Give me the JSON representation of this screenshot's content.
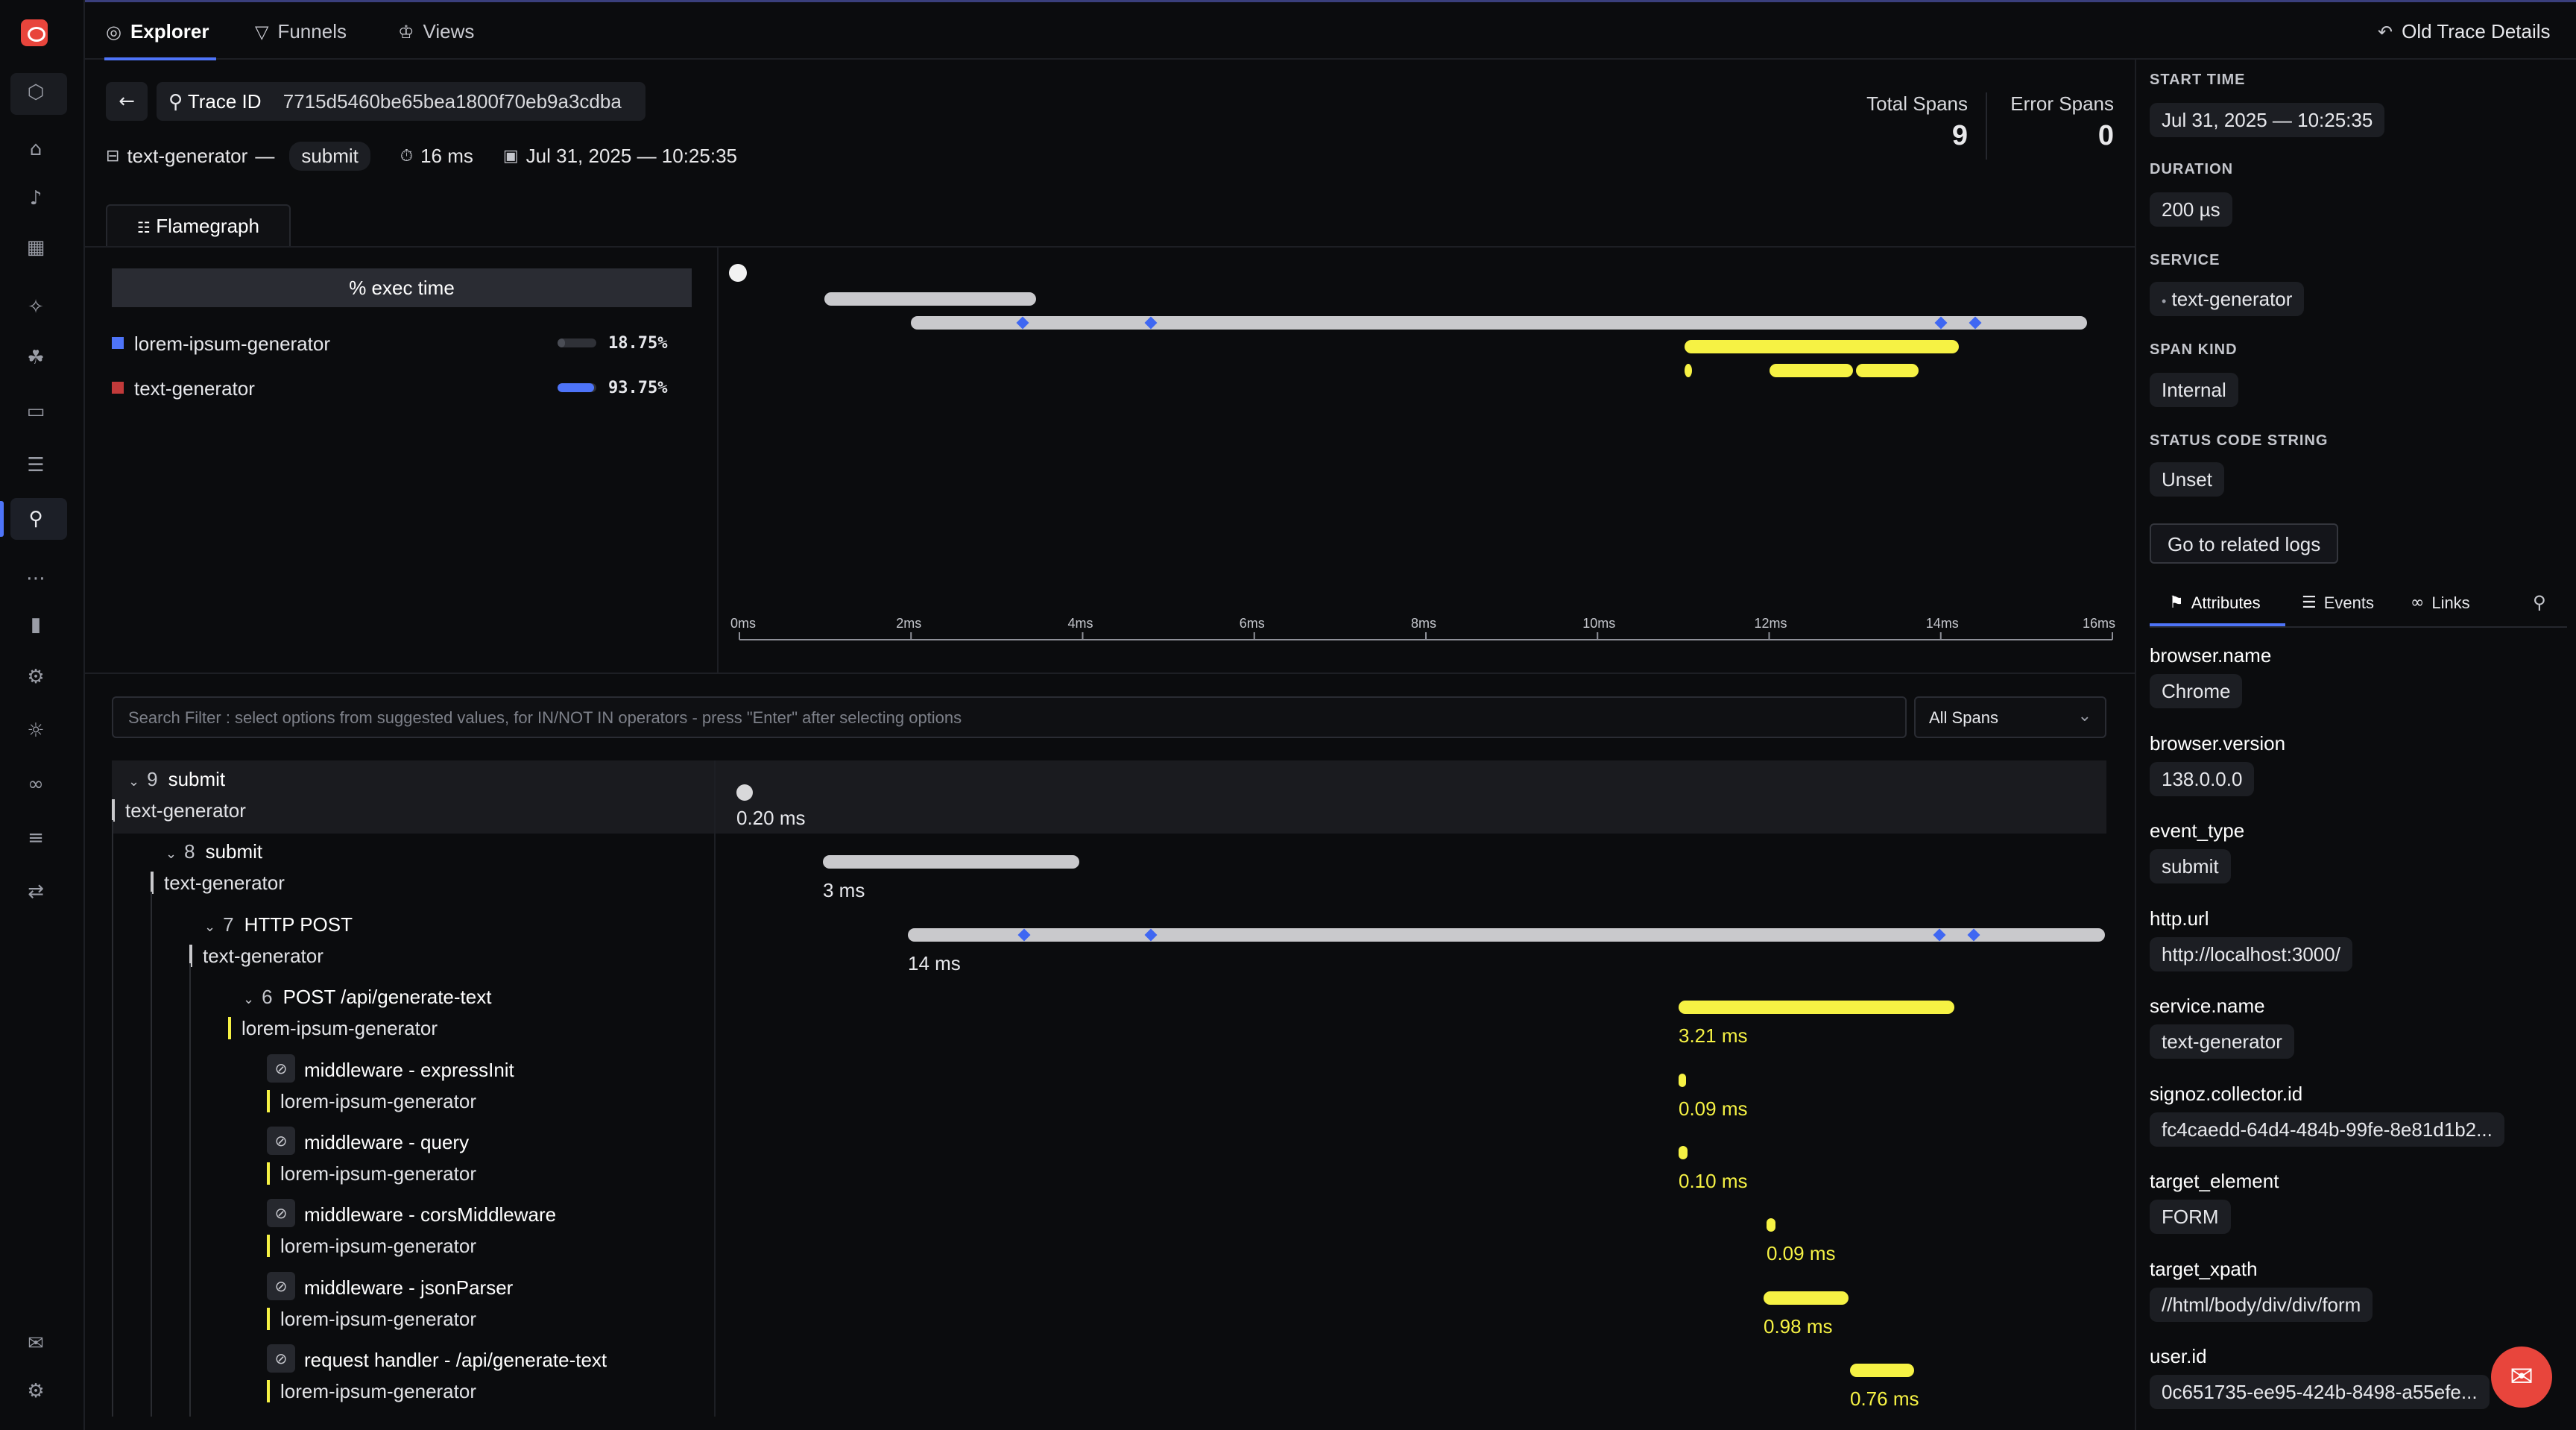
{
  "nav": {
    "tabs": [
      {
        "label": "Explorer",
        "icon": "compass-icon"
      },
      {
        "label": "Funnels",
        "icon": "funnel-icon"
      },
      {
        "label": "Views",
        "icon": "views-icon"
      }
    ],
    "old_trace_details": "Old Trace Details"
  },
  "trace": {
    "trace_id_label": "Trace ID",
    "trace_id": "7715d5460be65bea1800f70eb9a3cdba",
    "service": "text-generator",
    "separator": "—",
    "root_name": "submit",
    "duration": "16 ms",
    "date": "Jul 31, 2025 — 10:25:35",
    "total_spans_label": "Total Spans",
    "total_spans": "9",
    "error_spans_label": "Error Spans",
    "error_spans": "0"
  },
  "flamegraph": {
    "tab_label": "Flamegraph",
    "exec_header": "% exec time",
    "services": [
      {
        "name": "lorem-ipsum-generator",
        "pct": "18.75%",
        "color": "#4e74f8",
        "fill": 0.1875,
        "bar_color": "#4a4d55"
      },
      {
        "name": "text-generator",
        "pct": "93.75%",
        "color": "#c23a3a",
        "fill": 0.9375,
        "bar_color": "#4e74f8"
      }
    ],
    "axis_labels": [
      "0ms",
      "2ms",
      "4ms",
      "6ms",
      "8ms",
      "10ms",
      "12ms",
      "14ms",
      "16ms"
    ]
  },
  "filter": {
    "placeholder": "Search Filter : select options from suggested values, for IN/NOT IN operators - press \"Enter\" after selecting options",
    "spans_select": "All Spans"
  },
  "spans": [
    {
      "count": "9",
      "name": "submit",
      "service": "text-generator",
      "duration": "0.20 ms",
      "color": "gray",
      "expandable": true
    },
    {
      "count": "8",
      "name": "submit",
      "service": "text-generator",
      "duration": "3 ms",
      "color": "gray",
      "expandable": true
    },
    {
      "count": "7",
      "name": "HTTP POST",
      "service": "text-generator",
      "duration": "14 ms",
      "color": "gray",
      "expandable": true
    },
    {
      "count": "6",
      "name": "POST /api/generate-text",
      "service": "lorem-ipsum-generator",
      "duration": "3.21 ms",
      "color": "yellow",
      "expandable": true
    },
    {
      "count": "",
      "name": "middleware - expressInit",
      "service": "lorem-ipsum-generator",
      "duration": "0.09 ms",
      "color": "yellow",
      "expandable": false
    },
    {
      "count": "",
      "name": "middleware - query",
      "service": "lorem-ipsum-generator",
      "duration": "0.10 ms",
      "color": "yellow",
      "expandable": false
    },
    {
      "count": "",
      "name": "middleware - corsMiddleware",
      "service": "lorem-ipsum-generator",
      "duration": "0.09 ms",
      "color": "yellow",
      "expandable": false
    },
    {
      "count": "",
      "name": "middleware - jsonParser",
      "service": "lorem-ipsum-generator",
      "duration": "0.98 ms",
      "color": "yellow",
      "expandable": false
    },
    {
      "count": "",
      "name": "request handler - /api/generate-text",
      "service": "lorem-ipsum-generator",
      "duration": "0.76 ms",
      "color": "yellow",
      "expandable": false
    }
  ],
  "details": {
    "start_time_label": "START TIME",
    "start_time": "Jul 31, 2025 — 10:25:35",
    "duration_label": "DURATION",
    "duration": "200 µs",
    "service_label": "SERVICE",
    "service": "text-generator",
    "span_kind_label": "SPAN KIND",
    "span_kind": "Internal",
    "status_label": "STATUS CODE STRING",
    "status": "Unset",
    "related_logs": "Go to related logs",
    "tabs": [
      "Attributes",
      "Events",
      "Links"
    ],
    "attributes": [
      {
        "key": "browser.name",
        "value": "Chrome"
      },
      {
        "key": "browser.version",
        "value": "138.0.0.0"
      },
      {
        "key": "event_type",
        "value": "submit"
      },
      {
        "key": "http.url",
        "value": "http://localhost:3000/"
      },
      {
        "key": "service.name",
        "value": "text-generator"
      },
      {
        "key": "signoz.collector.id",
        "value": "fc4caedd-64d4-484b-99fe-8e81d1b2..."
      },
      {
        "key": "target_element",
        "value": "FORM"
      },
      {
        "key": "target_xpath",
        "value": "//html/body/div/div/form"
      },
      {
        "key": "user.id",
        "value": "0c651735-ee95-424b-8498-a55efe..."
      }
    ]
  },
  "colors": {
    "accent": "#4e74f8",
    "span_gray": "#c9c9cc",
    "span_yellow": "#f6f244",
    "chat_bubble": "#e8453c"
  }
}
